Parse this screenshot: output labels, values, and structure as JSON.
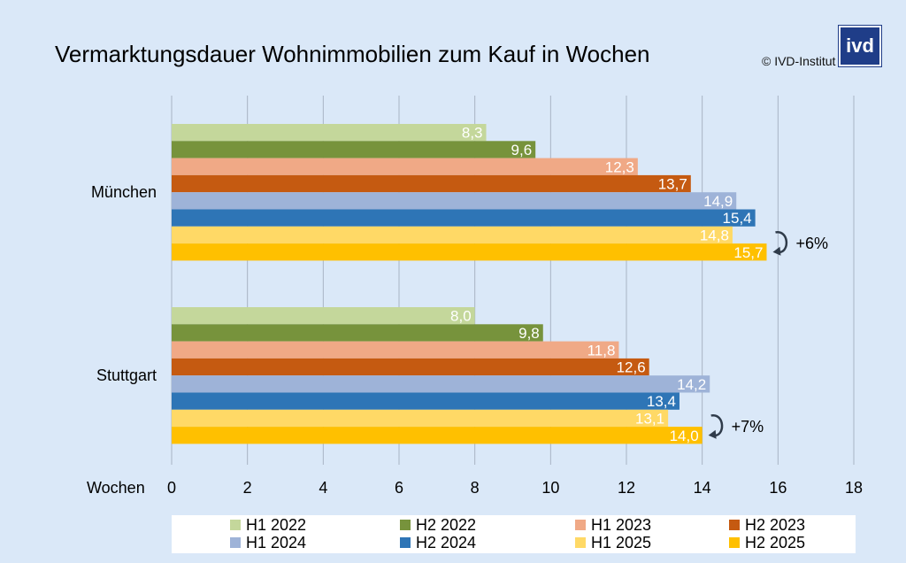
{
  "title": "Vermarktungsdauer Wohnimmobilien zum Kauf in Wochen",
  "copyright": "© IVD-Institut",
  "logo_text": "ivd",
  "chart_data": {
    "type": "bar",
    "orientation": "horizontal",
    "title": "Vermarktungsdauer Wohnimmobilien zum Kauf in Wochen",
    "xlabel": "Wochen",
    "ylabel": "",
    "xlim": [
      0,
      18
    ],
    "x_ticks": [
      0,
      2,
      4,
      6,
      8,
      10,
      12,
      14,
      16,
      18
    ],
    "grid": true,
    "categories": [
      "München",
      "Stuttgart"
    ],
    "series": [
      {
        "name": "H1 2022",
        "color": "#c4d79b",
        "values": [
          8.3,
          8.0
        ],
        "labels": [
          "8,3",
          "8,0"
        ]
      },
      {
        "name": "H2 2022",
        "color": "#77933c",
        "values": [
          9.6,
          9.8
        ],
        "labels": [
          "9,6",
          "9,8"
        ]
      },
      {
        "name": "H1 2023",
        "color": "#f0a986",
        "values": [
          12.3,
          11.8
        ],
        "labels": [
          "12,3",
          "11,8"
        ]
      },
      {
        "name": "H2 2023",
        "color": "#c55a11",
        "values": [
          13.7,
          12.6
        ],
        "labels": [
          "13,7",
          "12,6"
        ]
      },
      {
        "name": "H1 2024",
        "color": "#9eb3d8",
        "values": [
          14.9,
          14.2
        ],
        "labels": [
          "14,9",
          "14,2"
        ]
      },
      {
        "name": "H2 2024",
        "color": "#2e75b6",
        "values": [
          15.4,
          13.4
        ],
        "labels": [
          "15,4",
          "13,4"
        ]
      },
      {
        "name": "H1 2025",
        "color": "#ffd966",
        "values": [
          14.8,
          13.1
        ],
        "labels": [
          "14,8",
          "13,1"
        ]
      },
      {
        "name": "H2 2025",
        "color": "#ffc000",
        "values": [
          15.7,
          14.0
        ],
        "labels": [
          "15,7",
          "14,0"
        ]
      }
    ],
    "legend_position": "bottom",
    "annotations": [
      {
        "category": "München",
        "text": "+6%"
      },
      {
        "category": "Stuttgart",
        "text": "+7%"
      }
    ]
  }
}
